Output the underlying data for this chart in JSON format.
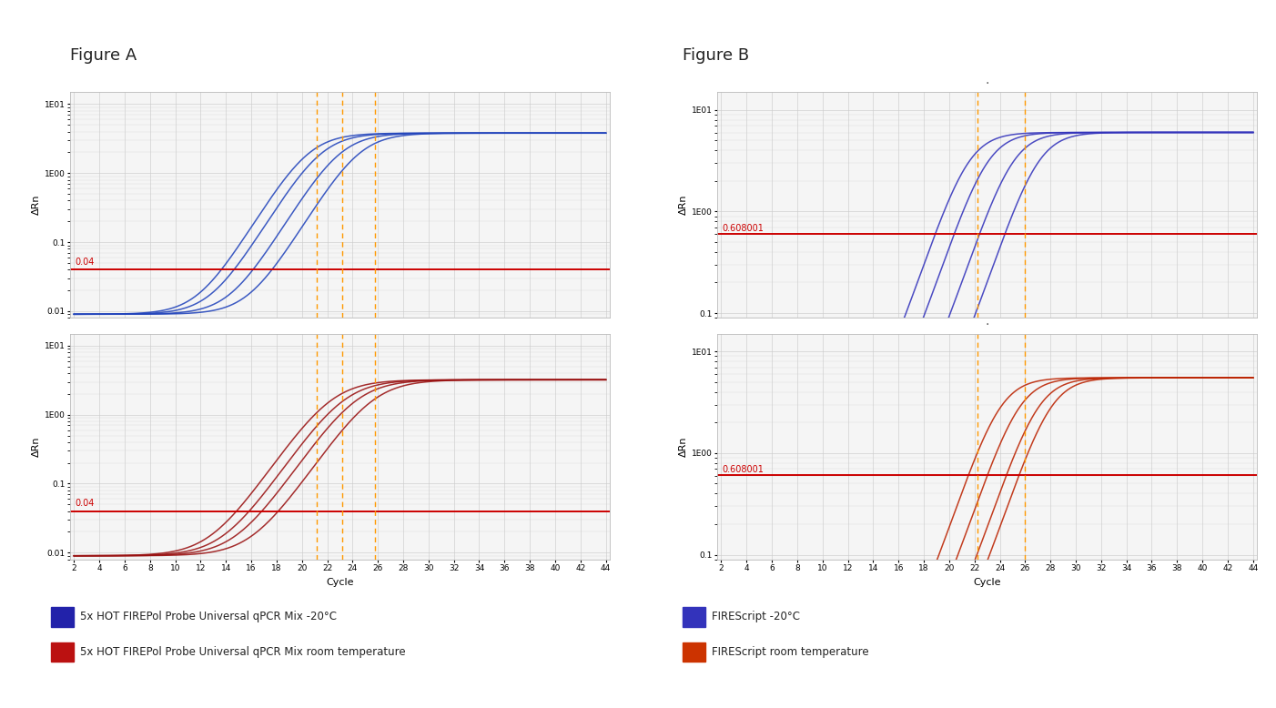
{
  "fig_a_title": "Figure A",
  "fig_b_title": "Figure B",
  "xlabel": "Cycle",
  "ylabel": "ΔRn",
  "x_min": 2,
  "x_max": 44,
  "x_ticks": [
    2,
    4,
    6,
    8,
    10,
    12,
    14,
    16,
    18,
    20,
    22,
    24,
    26,
    28,
    30,
    32,
    34,
    36,
    38,
    40,
    42,
    44
  ],
  "threshold_a": 0.04,
  "threshold_b": 0.608001,
  "threshold_label_a": "0.04",
  "threshold_label_b": "0.608001",
  "vlines_a": [
    21.2,
    23.2,
    25.8
  ],
  "vlines_b": [
    22.2,
    26.0
  ],
  "bg_color": "#f5f5f5",
  "grid_color": "#cccccc",
  "threshold_color": "#cc0000",
  "vline_color": "#ff9900",
  "legend_blue_cold": "5x HOT FIREPol Probe Universal qPCR Mix -20°C",
  "legend_red_room": "5x HOT FIREPol Probe Universal qPCR Mix room temperature",
  "legend_firescript_cold": "FIREScript -20°C",
  "legend_firescript_room": "FIREScript room temperature",
  "blue_cold_color": "#2222aa",
  "red_room_color": "#bb1111",
  "firescript_cold_color": "#3333bb",
  "firescript_room_color": "#cc3300",
  "panel_a_top": {
    "color": "#2244bb",
    "y_min": 0.008,
    "y_max": 15,
    "plateau": 3.8,
    "slope": 0.7,
    "Ct_offsets": [
      -2.0,
      -1.0,
      0.5,
      2.0
    ],
    "Ct_base": 22.5
  },
  "panel_a_bot": {
    "color": "#991111",
    "y_min": 0.008,
    "y_max": 15,
    "plateau": 3.2,
    "slope": 0.62,
    "Ct_offsets": [
      -1.5,
      -0.5,
      0.5,
      1.8
    ],
    "Ct_base": 23.8
  },
  "panel_b_top": {
    "color": "#3333bb",
    "y_min": 0.09,
    "y_max": 15,
    "plateau": 6.0,
    "slope": 0.85,
    "Ct_offsets": [
      -2.0,
      -0.5,
      1.5,
      3.5
    ],
    "Ct_base": 23.5
  },
  "panel_b_bot": {
    "color": "#bb2200",
    "y_min": 0.09,
    "y_max": 15,
    "plateau": 5.5,
    "slope": 0.85,
    "Ct_offsets": [
      -1.0,
      0.5,
      2.0,
      3.0
    ],
    "Ct_base": 25.0
  }
}
